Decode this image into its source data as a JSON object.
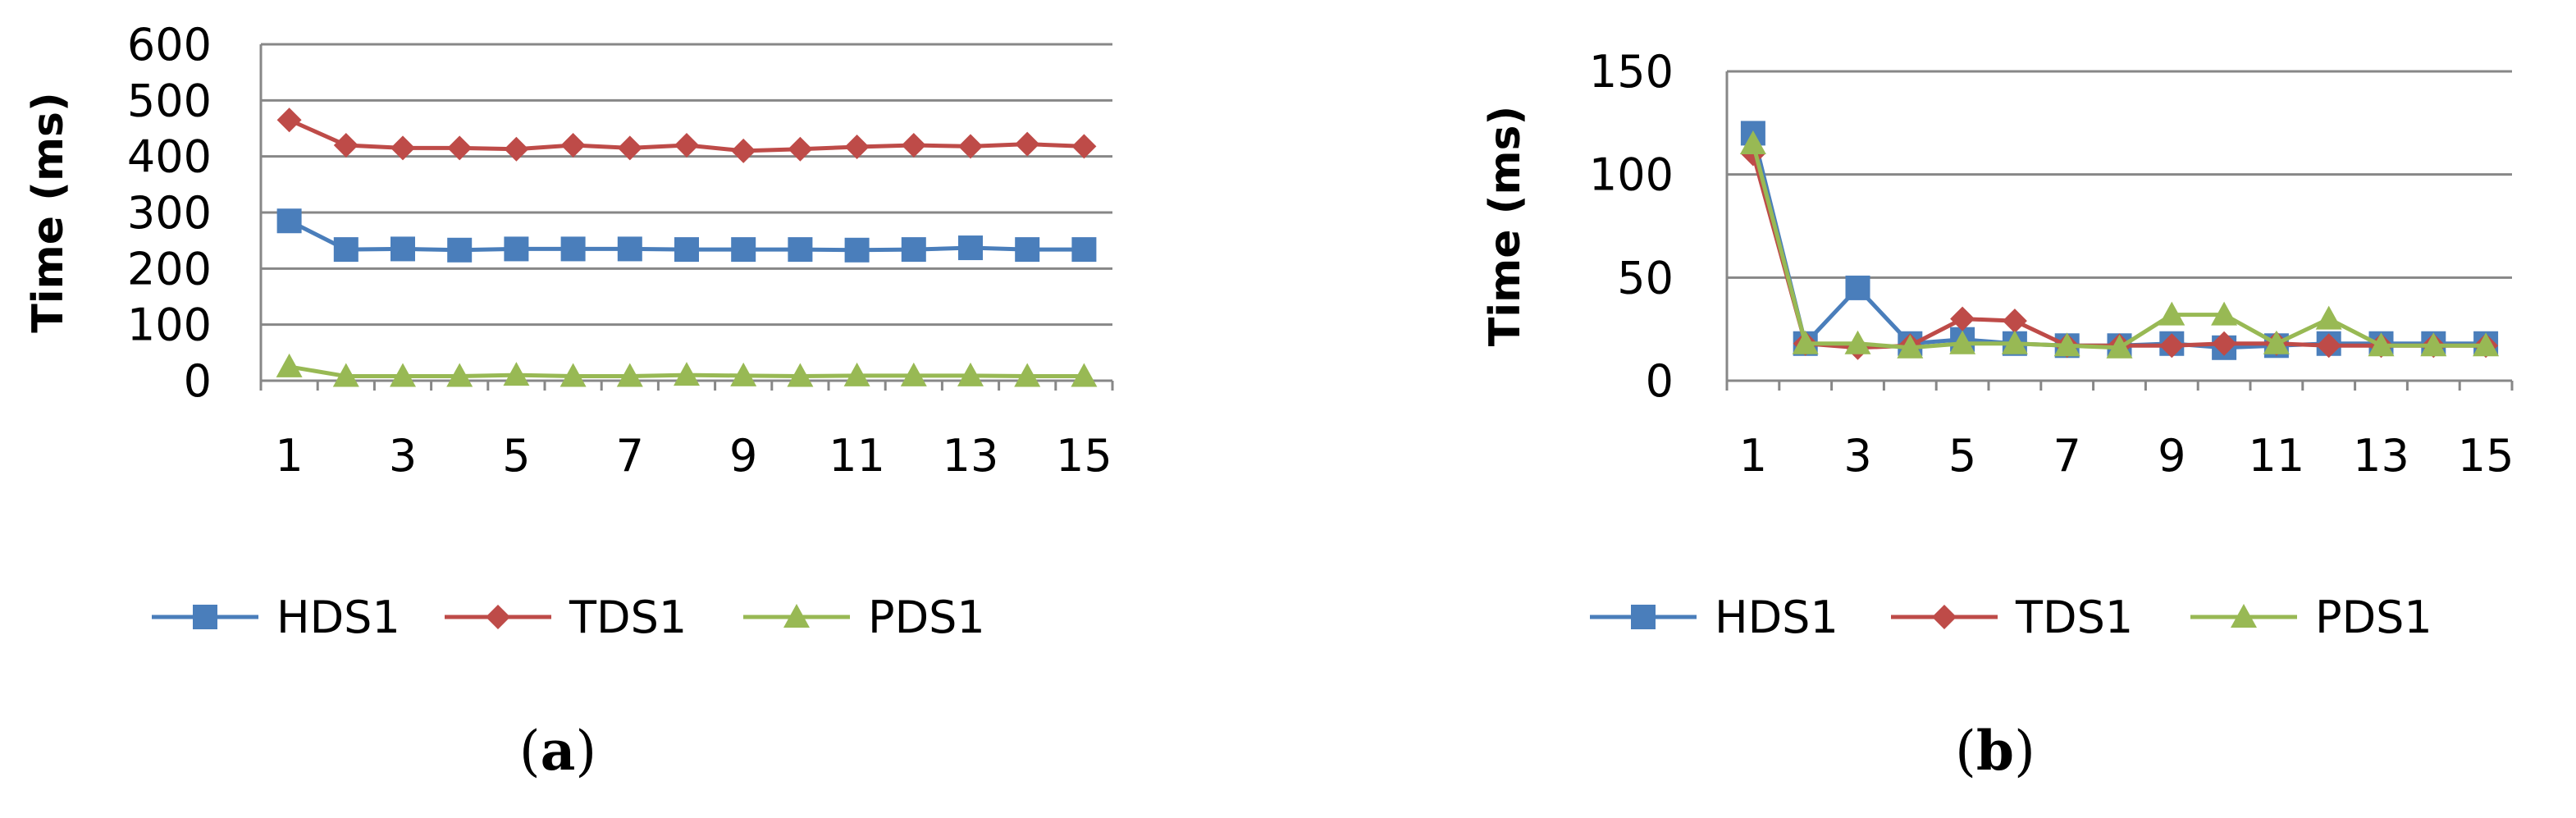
{
  "chart_data": [
    {
      "type": "line",
      "panel_label": "a",
      "ylabel": "Time (ms)",
      "ylim": [
        0,
        600
      ],
      "yticks": [
        0,
        100,
        200,
        300,
        400,
        500,
        600
      ],
      "x": [
        1,
        2,
        3,
        4,
        5,
        6,
        7,
        8,
        9,
        10,
        11,
        12,
        13,
        14,
        15
      ],
      "xticks": [
        1,
        3,
        5,
        7,
        9,
        11,
        13,
        15
      ],
      "grid": true,
      "legend_position": "bottom",
      "series": [
        {
          "name": "HDS1",
          "color": "#4a7ebb",
          "marker": "square",
          "values": [
            285,
            234,
            235,
            233,
            235,
            235,
            235,
            234,
            234,
            234,
            233,
            234,
            237,
            234,
            234
          ]
        },
        {
          "name": "TDS1",
          "color": "#be4b48",
          "marker": "diamond",
          "values": [
            465,
            420,
            415,
            415,
            413,
            420,
            415,
            420,
            410,
            413,
            417,
            420,
            418,
            422,
            418
          ]
        },
        {
          "name": "PDS1",
          "color": "#98b954",
          "marker": "triangle",
          "values": [
            25,
            8,
            8,
            8,
            10,
            8,
            8,
            10,
            9,
            8,
            9,
            9,
            9,
            8,
            8
          ]
        }
      ]
    },
    {
      "type": "line",
      "panel_label": "b",
      "ylabel": "Time (ms)",
      "ylim": [
        0,
        150
      ],
      "yticks": [
        0,
        50,
        100,
        150
      ],
      "x": [
        1,
        2,
        3,
        4,
        5,
        6,
        7,
        8,
        9,
        10,
        11,
        12,
        13,
        14,
        15
      ],
      "xticks": [
        1,
        3,
        5,
        7,
        9,
        11,
        13,
        15
      ],
      "grid": true,
      "legend_position": "bottom",
      "series": [
        {
          "name": "HDS1",
          "color": "#4a7ebb",
          "marker": "square",
          "values": [
            120,
            18,
            45,
            18,
            20,
            18,
            17,
            17,
            18,
            16,
            17,
            18,
            18,
            18,
            18
          ]
        },
        {
          "name": "TDS1",
          "color": "#be4b48",
          "marker": "diamond",
          "values": [
            110,
            18,
            16,
            17,
            30,
            29,
            17,
            17,
            17,
            18,
            18,
            17,
            17,
            17,
            17
          ]
        },
        {
          "name": "PDS1",
          "color": "#98b954",
          "marker": "triangle",
          "values": [
            115,
            18,
            18,
            16,
            18,
            18,
            17,
            16,
            32,
            32,
            18,
            30,
            17,
            17,
            17
          ]
        }
      ]
    }
  ]
}
